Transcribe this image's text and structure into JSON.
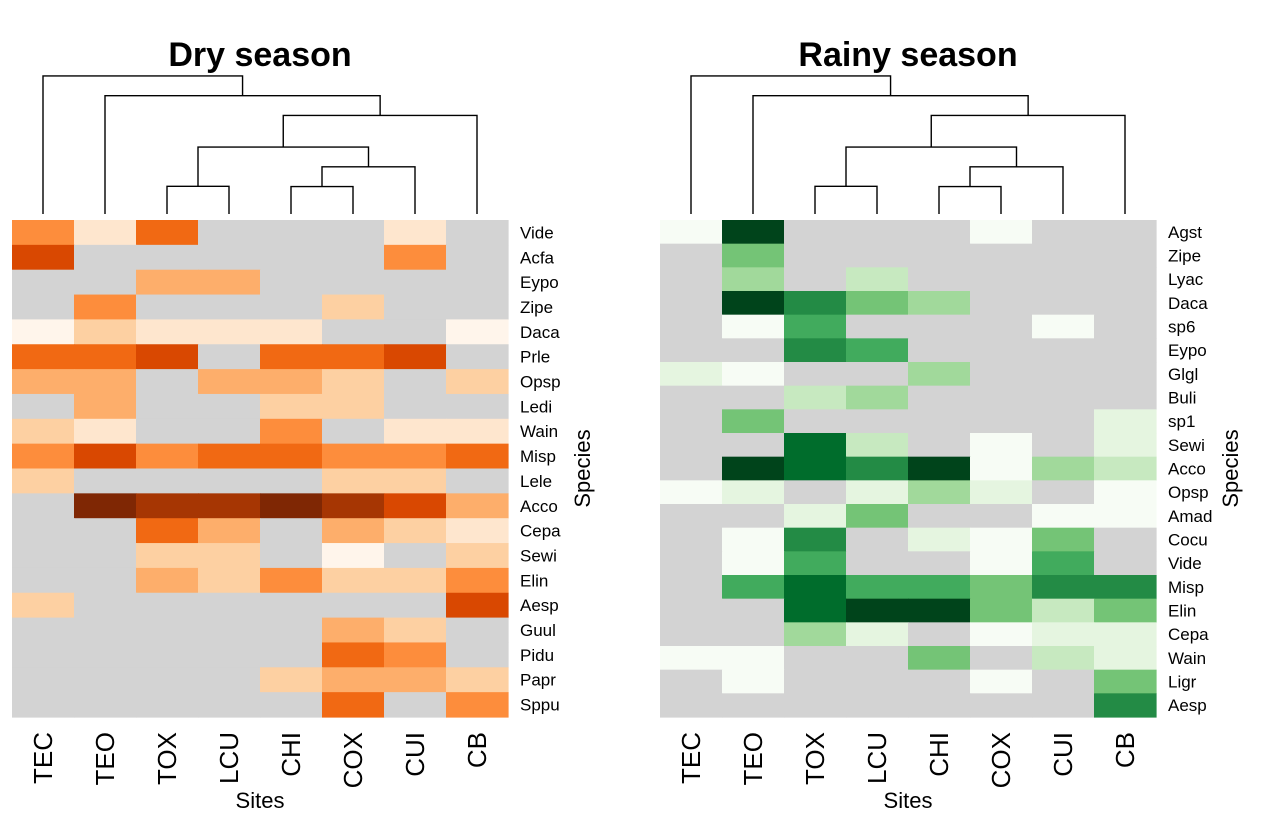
{
  "chart_data": [
    {
      "type": "heatmap",
      "title": "Dry season",
      "xlabel": "Sites",
      "ylabel": "Species",
      "palette": "orange",
      "na_color": "#d3d3d3",
      "columns": [
        "TEC",
        "TEO",
        "TOX",
        "LCU",
        "CHI",
        "COX",
        "CUI",
        "CB"
      ],
      "rows": [
        "Vide",
        "Acfa",
        "Eypo",
        "Zipe",
        "Daca",
        "Prle",
        "Opsp",
        "Ledi",
        "Wain",
        "Misp",
        "Lele",
        "Acco",
        "Cepa",
        "Sewi",
        "Elin",
        "Aesp",
        "Guul",
        "Pidu",
        "Papr",
        "Sppu"
      ],
      "values": [
        [
          5,
          2,
          6,
          null,
          null,
          null,
          2,
          null
        ],
        [
          7,
          null,
          null,
          null,
          null,
          null,
          5,
          null
        ],
        [
          null,
          null,
          4,
          4,
          null,
          null,
          null,
          null
        ],
        [
          null,
          5,
          null,
          null,
          null,
          3,
          null,
          null
        ],
        [
          1,
          3,
          2,
          2,
          2,
          null,
          null,
          1
        ],
        [
          6,
          6,
          7,
          null,
          6,
          6,
          7,
          null
        ],
        [
          4,
          4,
          null,
          4,
          4,
          3,
          null,
          3
        ],
        [
          null,
          4,
          null,
          null,
          3,
          3,
          null,
          null
        ],
        [
          3,
          2,
          null,
          null,
          5,
          null,
          2,
          2
        ],
        [
          5,
          7,
          5,
          6,
          6,
          5,
          5,
          6
        ],
        [
          3,
          null,
          null,
          null,
          null,
          3,
          3,
          null
        ],
        [
          null,
          9,
          8,
          8,
          9,
          8,
          7,
          4
        ],
        [
          null,
          null,
          6,
          4,
          null,
          4,
          3,
          2
        ],
        [
          null,
          null,
          3,
          3,
          null,
          1,
          null,
          3
        ],
        [
          null,
          null,
          4,
          3,
          5,
          3,
          3,
          5
        ],
        [
          3,
          null,
          null,
          null,
          null,
          null,
          null,
          7
        ],
        [
          null,
          null,
          null,
          null,
          null,
          4,
          3,
          null
        ],
        [
          null,
          null,
          null,
          null,
          null,
          6,
          5,
          null
        ],
        [
          null,
          null,
          null,
          null,
          3,
          4,
          4,
          3
        ],
        [
          null,
          null,
          null,
          null,
          null,
          6,
          null,
          5
        ]
      ],
      "dendrogram_merges": [
        [
          "TOX",
          "LCU"
        ],
        [
          "CHI",
          "COX"
        ],
        [
          "CHI-COX",
          "CUI"
        ],
        [
          "TOX-LCU",
          "CHI-COX-CUI"
        ],
        [
          "TOX-LCU-CHI-COX-CUI",
          "CB"
        ],
        [
          "TEO",
          "TOX-LCU-CHI-COX-CUI-CB"
        ],
        [
          "TEC",
          "TEO-TOX-LCU-CHI-COX-CUI-CB"
        ]
      ]
    },
    {
      "type": "heatmap",
      "title": "Rainy season",
      "xlabel": "Sites",
      "ylabel": "Species",
      "palette": "green",
      "na_color": "#d3d3d3",
      "columns": [
        "TEC",
        "TEO",
        "TOX",
        "LCU",
        "CHI",
        "COX",
        "CUI",
        "CB"
      ],
      "rows": [
        "Agst",
        "Zipe",
        "Lyac",
        "Daca",
        "sp6",
        "Eypo",
        "Glgl",
        "Buli",
        "sp1",
        "Sewi",
        "Acco",
        "Opsp",
        "Amad",
        "Cocu",
        "Vide",
        "Misp",
        "Elin",
        "Cepa",
        "Wain",
        "Ligr",
        "Aesp"
      ],
      "values": [
        [
          1,
          9,
          null,
          null,
          null,
          1,
          null,
          null
        ],
        [
          null,
          5,
          null,
          null,
          null,
          null,
          null,
          null
        ],
        [
          null,
          4,
          null,
          3,
          null,
          null,
          null,
          null
        ],
        [
          null,
          9,
          7,
          5,
          4,
          null,
          null,
          null
        ],
        [
          null,
          1,
          6,
          null,
          null,
          null,
          1,
          null
        ],
        [
          null,
          null,
          7,
          6,
          null,
          null,
          null,
          null
        ],
        [
          2,
          1,
          null,
          null,
          4,
          null,
          null,
          null
        ],
        [
          null,
          null,
          3,
          4,
          null,
          null,
          null,
          null
        ],
        [
          null,
          5,
          null,
          null,
          null,
          null,
          null,
          2
        ],
        [
          null,
          null,
          8,
          3,
          null,
          1,
          null,
          2
        ],
        [
          null,
          9,
          8,
          7,
          9,
          1,
          4,
          3
        ],
        [
          1,
          2,
          null,
          2,
          4,
          2,
          null,
          1
        ],
        [
          null,
          null,
          2,
          5,
          null,
          null,
          1,
          1
        ],
        [
          null,
          1,
          7,
          null,
          2,
          1,
          5,
          null
        ],
        [
          null,
          1,
          6,
          null,
          null,
          1,
          6,
          null
        ],
        [
          null,
          6,
          8,
          6,
          6,
          5,
          7,
          7
        ],
        [
          null,
          null,
          8,
          9,
          9,
          5,
          3,
          5
        ],
        [
          null,
          null,
          4,
          2,
          null,
          1,
          2,
          2
        ],
        [
          1,
          1,
          null,
          null,
          5,
          null,
          3,
          2
        ],
        [
          null,
          1,
          null,
          null,
          null,
          1,
          null,
          5
        ],
        [
          null,
          null,
          null,
          null,
          null,
          null,
          null,
          7
        ]
      ],
      "dendrogram_merges": [
        [
          "TOX",
          "LCU"
        ],
        [
          "CHI",
          "COX"
        ],
        [
          "CHI-COX",
          "CUI"
        ],
        [
          "TOX-LCU",
          "CHI-COX-CUI"
        ],
        [
          "TOX-LCU-CHI-COX-CUI",
          "CB"
        ],
        [
          "TEO",
          "TOX-LCU-CHI-COX-CUI-CB"
        ],
        [
          "TEC",
          "TEO-TOX-LCU-CHI-COX-CUI-CB"
        ]
      ]
    }
  ]
}
